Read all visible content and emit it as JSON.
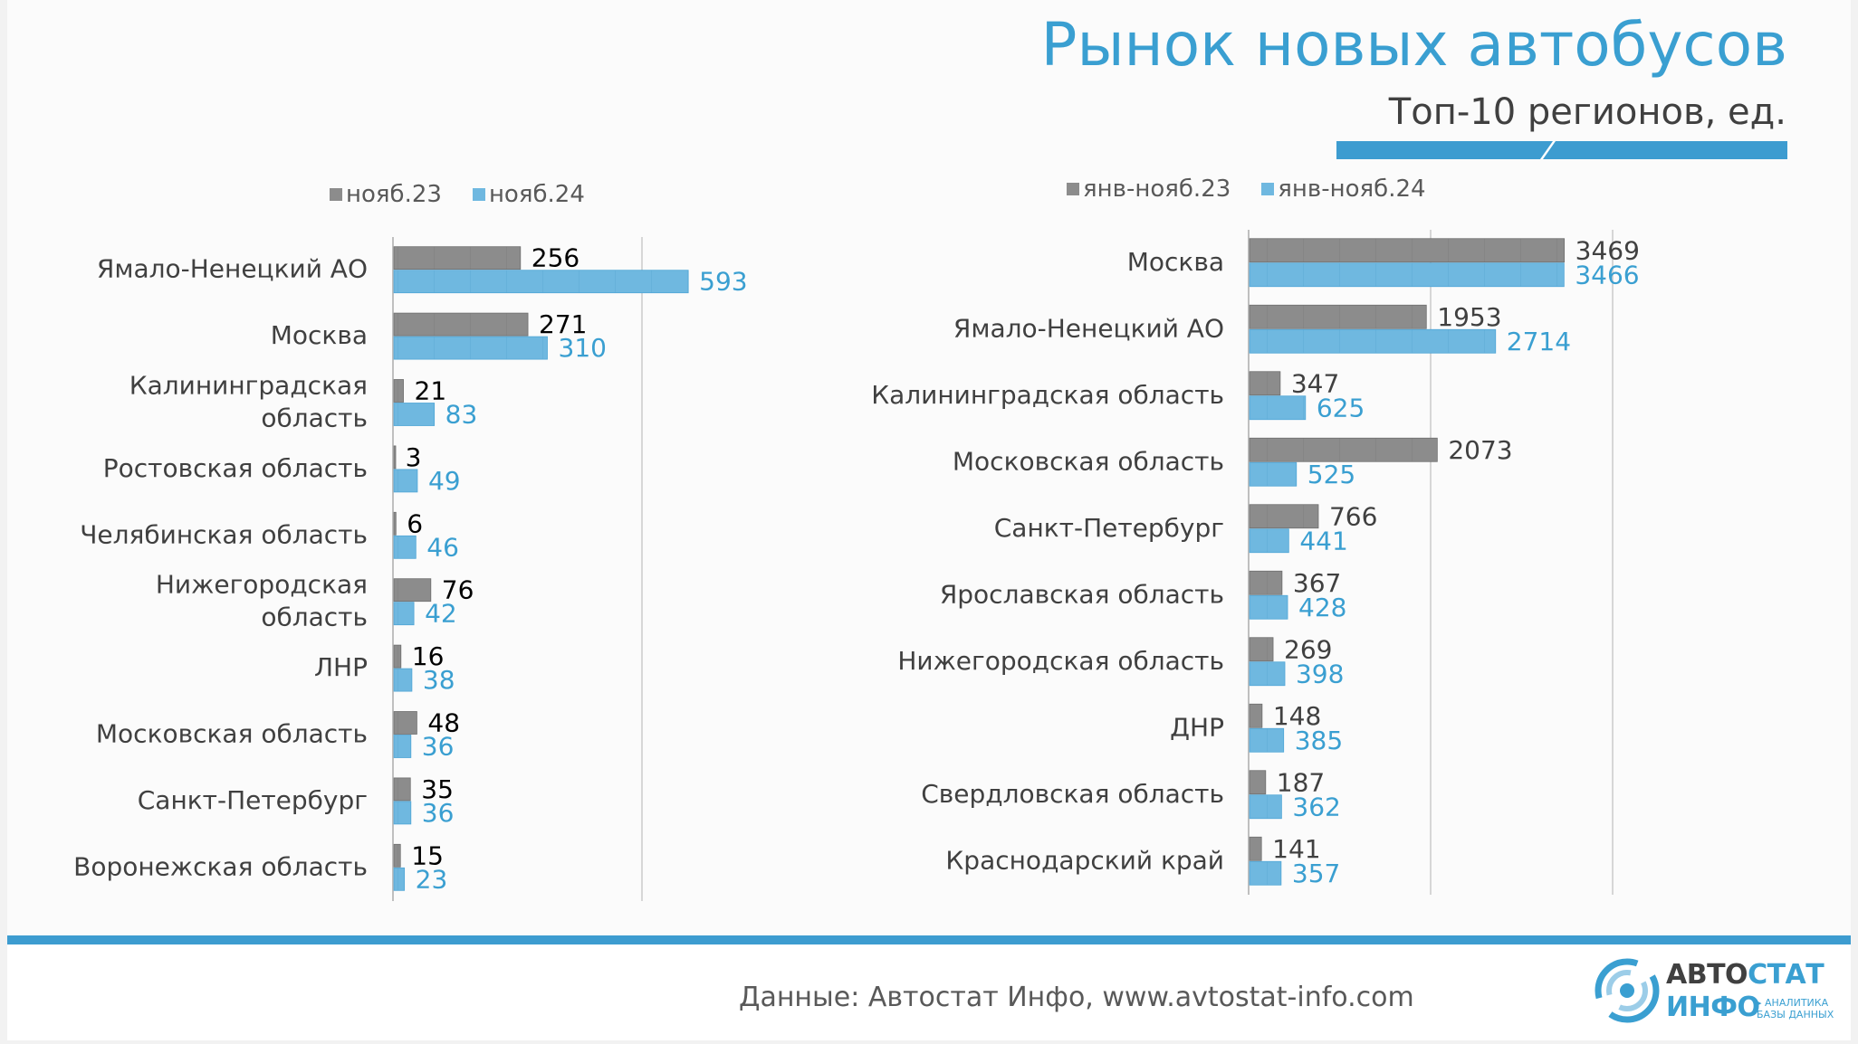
{
  "title": "Рынок новых автобусов",
  "subtitle": "Топ-10 регионов, ед.",
  "colors": {
    "grey_bar": "#8c8c8c",
    "blue_bar": "#6fb8e0",
    "grey_label": "#000000",
    "blue_label": "#3a9fd1",
    "accent": "#3d9cd0"
  },
  "chart_data": [
    {
      "type": "bar",
      "orientation": "horizontal",
      "title": "",
      "xlim": [
        0,
        1000
      ],
      "categories": [
        [
          "Ямало-Ненецкий АО"
        ],
        [
          "Москва"
        ],
        [
          "Калининградская",
          "область"
        ],
        [
          "Ростовская область"
        ],
        [
          "Челябинская область"
        ],
        [
          "Нижегородская",
          "область"
        ],
        [
          "ЛНР"
        ],
        [
          "Московская область"
        ],
        [
          "Санкт-Петербург"
        ],
        [
          "Воронежская область"
        ]
      ],
      "series": [
        {
          "name": "нояб.23",
          "values": [
            256,
            271,
            21,
            3,
            6,
            76,
            16,
            48,
            35,
            15
          ]
        },
        {
          "name": "нояб.24",
          "values": [
            593,
            310,
            83,
            49,
            46,
            42,
            38,
            36,
            36,
            23
          ]
        }
      ]
    },
    {
      "type": "bar",
      "orientation": "horizontal",
      "title": "",
      "xlim": [
        0,
        6000
      ],
      "categories": [
        [
          "Москва"
        ],
        [
          "Ямало-Ненецкий АО"
        ],
        [
          "Калининградская область"
        ],
        [
          "Московская область"
        ],
        [
          "Санкт-Петербург"
        ],
        [
          "Ярославская область"
        ],
        [
          "Нижегородская область"
        ],
        [
          "ДНР"
        ],
        [
          "Свердловская область"
        ],
        [
          "Краснодарский край"
        ]
      ],
      "series": [
        {
          "name": "янв-нояб.23",
          "values": [
            3469,
            1953,
            347,
            2073,
            766,
            367,
            269,
            148,
            187,
            141
          ]
        },
        {
          "name": "янв-нояб.24",
          "values": [
            3466,
            2714,
            625,
            525,
            441,
            428,
            398,
            385,
            362,
            357
          ]
        }
      ]
    }
  ],
  "footer": {
    "source": "Данные: Автостат Инфо, www.avtostat-info.com",
    "logo_avto": "АВТО",
    "logo_stat": "СТАТ",
    "logo_info": "ИНФО",
    "logo_sub_1": "▸ АНАЛИТИКА",
    "logo_sub_2": "БАЗЫ ДАННЫХ"
  }
}
